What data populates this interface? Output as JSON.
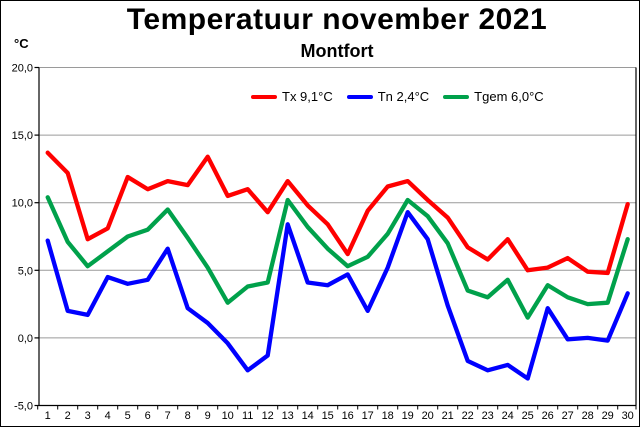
{
  "title": "Temperatuur november 2021",
  "subtitle": "Montfort",
  "y_axis_unit": "°C",
  "chart_data": {
    "type": "line",
    "title": "Temperatuur november 2021",
    "subtitle": "Montfort",
    "ylabel": "°C",
    "ylim": [
      -5,
      20
    ],
    "ytick_step": 5,
    "y_tick_labels": [
      "20,0",
      "15,0",
      "10,0",
      "5,0",
      "0,0",
      "-5,0"
    ],
    "y_tick_values": [
      20,
      15,
      10,
      5,
      0,
      -5
    ],
    "grid": true,
    "legend_position": "top-center",
    "grid_color": "#9a9a9a",
    "axis_color": "#000000",
    "x": [
      1,
      2,
      3,
      4,
      5,
      6,
      7,
      8,
      9,
      10,
      11,
      12,
      13,
      14,
      15,
      16,
      17,
      18,
      19,
      20,
      21,
      22,
      23,
      24,
      25,
      26,
      27,
      28,
      29,
      30
    ],
    "series": [
      {
        "name": "Tx 9,1°C",
        "color": "#ff0000",
        "values": [
          13.7,
          12.2,
          7.3,
          8.1,
          11.9,
          11.0,
          11.6,
          11.3,
          13.4,
          10.5,
          11.0,
          9.3,
          11.6,
          9.8,
          8.4,
          6.2,
          9.4,
          11.2,
          11.6,
          10.2,
          8.9,
          6.7,
          5.8,
          7.3,
          5.0,
          5.2,
          5.9,
          4.9,
          4.8,
          9.9
        ]
      },
      {
        "name": "Tn 2,4°C",
        "color": "#0000ff",
        "values": [
          7.2,
          2.0,
          1.7,
          4.5,
          4.0,
          4.3,
          6.6,
          2.2,
          1.1,
          -0.4,
          -2.4,
          -1.3,
          8.4,
          4.1,
          3.9,
          4.7,
          2.0,
          5.2,
          9.3,
          7.3,
          2.4,
          -1.7,
          -2.4,
          -2.0,
          -3.0,
          2.2,
          -0.1,
          0.0,
          -0.2,
          3.3
        ]
      },
      {
        "name": "Tgem 6,0°C",
        "color": "#00a14b",
        "values": [
          10.4,
          7.1,
          5.3,
          6.4,
          7.5,
          8.0,
          9.5,
          7.4,
          5.2,
          2.6,
          3.8,
          4.1,
          10.2,
          8.2,
          6.6,
          5.3,
          6.0,
          7.7,
          10.2,
          9.0,
          7.0,
          3.5,
          3.0,
          4.3,
          1.5,
          3.9,
          3.0,
          2.5,
          2.6,
          7.3
        ]
      }
    ]
  }
}
